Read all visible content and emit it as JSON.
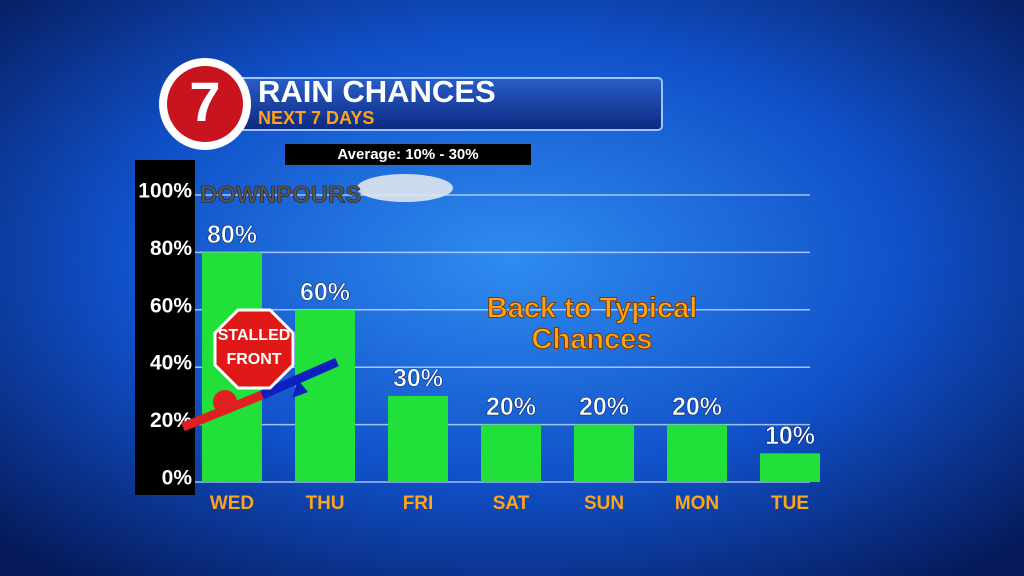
{
  "chart_data": {
    "type": "bar",
    "logo": "7",
    "title": "RAIN CHANCES",
    "subtitle": "NEXT 7 DAYS",
    "note": "Average: 10% - 30%",
    "annotations": {
      "downpours": "DOWNPOURS",
      "stop_sign": [
        "STALLED",
        "FRONT"
      ],
      "callout": [
        "Back to Typical",
        "Chances"
      ]
    },
    "categories": [
      "WED",
      "THU",
      "FRI",
      "SAT",
      "SUN",
      "MON",
      "TUE"
    ],
    "values": [
      80,
      60,
      30,
      20,
      20,
      20,
      10
    ],
    "value_labels": [
      "80%",
      "60%",
      "30%",
      "20%",
      "20%",
      "20%",
      "10%"
    ],
    "color": "#22e03a",
    "ylim": [
      0,
      100
    ],
    "yticks": [
      {
        "value": 0,
        "label": "0%"
      },
      {
        "value": 20,
        "label": "20%"
      },
      {
        "value": 40,
        "label": "40%"
      },
      {
        "value": 60,
        "label": "60%"
      },
      {
        "value": 80,
        "label": "80%"
      },
      {
        "value": 100,
        "label": "100%"
      }
    ],
    "grid": true
  }
}
